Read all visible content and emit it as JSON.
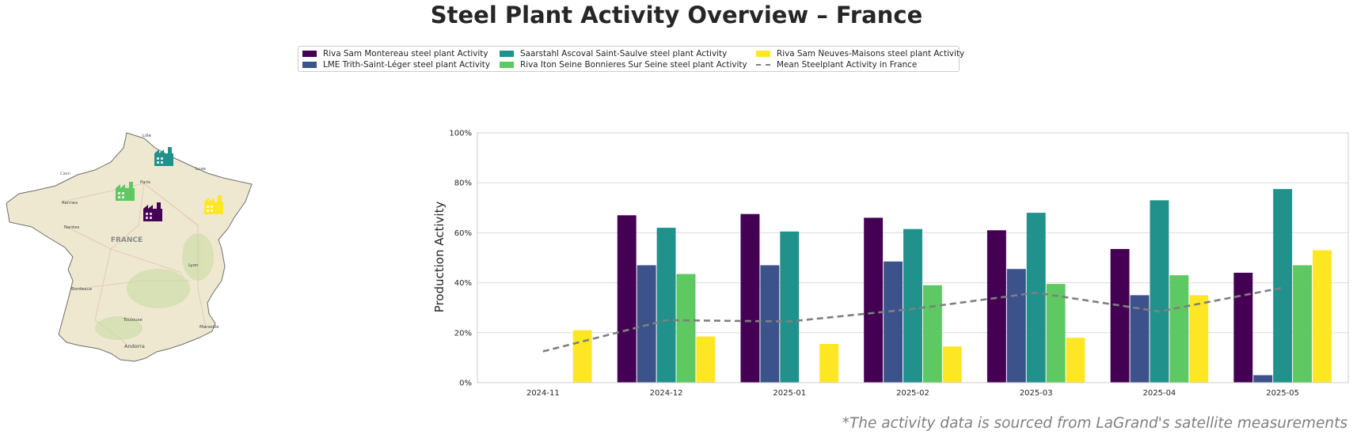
{
  "title": "Steel Plant Activity Overview – France",
  "footnote": "*The activity data is sourced from LaGrand's satellite measurements",
  "legend": [
    {
      "label": "Riva Sam Montereau steel plant Activity",
      "color": "#440154",
      "kind": "bar"
    },
    {
      "label": "LME Trith-Saint-Léger steel plant Activity",
      "color": "#3b528b",
      "kind": "bar"
    },
    {
      "label": "Saarstahl Ascoval Saint-Saulve steel plant Activity",
      "color": "#21918c",
      "kind": "bar"
    },
    {
      "label": "Riva Iton Seine Bonnieres Sur Seine steel plant Activity",
      "color": "#5ec962",
      "kind": "bar"
    },
    {
      "label": "Riva Sam Neuves-Maisons steel plant Activity",
      "color": "#fde725",
      "kind": "bar"
    },
    {
      "label": "Mean Steelplant Activity in France",
      "color": "#7f7f7f",
      "kind": "dashed-line"
    }
  ],
  "map": {
    "country_label": "FRANCE",
    "city_labels": [
      "Lille",
      "Paris",
      "Rennes",
      "Nantes",
      "Lyon",
      "Bordeaux",
      "Toulouse",
      "Marseille",
      "Andorra",
      "Luxe",
      "Caen"
    ],
    "markers": [
      {
        "plant": "Saarstahl Ascoval Saint-Saulve",
        "color": "#21918c",
        "icon": "factory-icon"
      },
      {
        "plant": "Riva Iton Seine Bonnieres Sur Seine",
        "color": "#5ec962",
        "icon": "factory-icon"
      },
      {
        "plant": "Riva Sam Montereau",
        "color": "#440154",
        "icon": "factory-icon"
      },
      {
        "plant": "Riva Sam Neuves-Maisons",
        "color": "#fde725",
        "icon": "factory-icon"
      }
    ]
  },
  "chart_data": {
    "type": "bar",
    "ylabel": "Production Activity",
    "xlabel": "",
    "ylim": [
      0,
      100
    ],
    "yticks": [
      "0%",
      "20%",
      "40%",
      "60%",
      "80%",
      "100%"
    ],
    "grid": true,
    "categories": [
      "2024-11",
      "2024-12",
      "2025-01",
      "2025-02",
      "2025-03",
      "2025-04",
      "2025-05"
    ],
    "series": [
      {
        "name": "Riva Sam Montereau steel plant Activity",
        "color": "#440154",
        "values": [
          null,
          67,
          67.5,
          66,
          61,
          53.5,
          44
        ]
      },
      {
        "name": "LME Trith-Saint-Léger steel plant Activity",
        "color": "#3b528b",
        "values": [
          null,
          47,
          47,
          48.5,
          45.5,
          35,
          3
        ]
      },
      {
        "name": "Saarstahl Ascoval Saint-Saulve steel plant Activity",
        "color": "#21918c",
        "values": [
          null,
          62,
          60.5,
          61.5,
          68,
          73,
          77.5
        ]
      },
      {
        "name": "Riva Iton Seine Bonnieres Sur Seine steel plant Activity",
        "color": "#5ec962",
        "values": [
          null,
          43.5,
          null,
          39,
          39.5,
          43,
          47
        ]
      },
      {
        "name": "Riva Sam Neuves-Maisons steel plant Activity",
        "color": "#fde725",
        "values": [
          21,
          18.5,
          15.5,
          14.5,
          18,
          35,
          53
        ]
      }
    ],
    "mean_line": {
      "name": "Mean Steelplant Activity in France",
      "color": "#7f7f7f",
      "values": [
        12.5,
        25,
        24.5,
        29.5,
        36,
        28.5,
        38
      ]
    }
  }
}
